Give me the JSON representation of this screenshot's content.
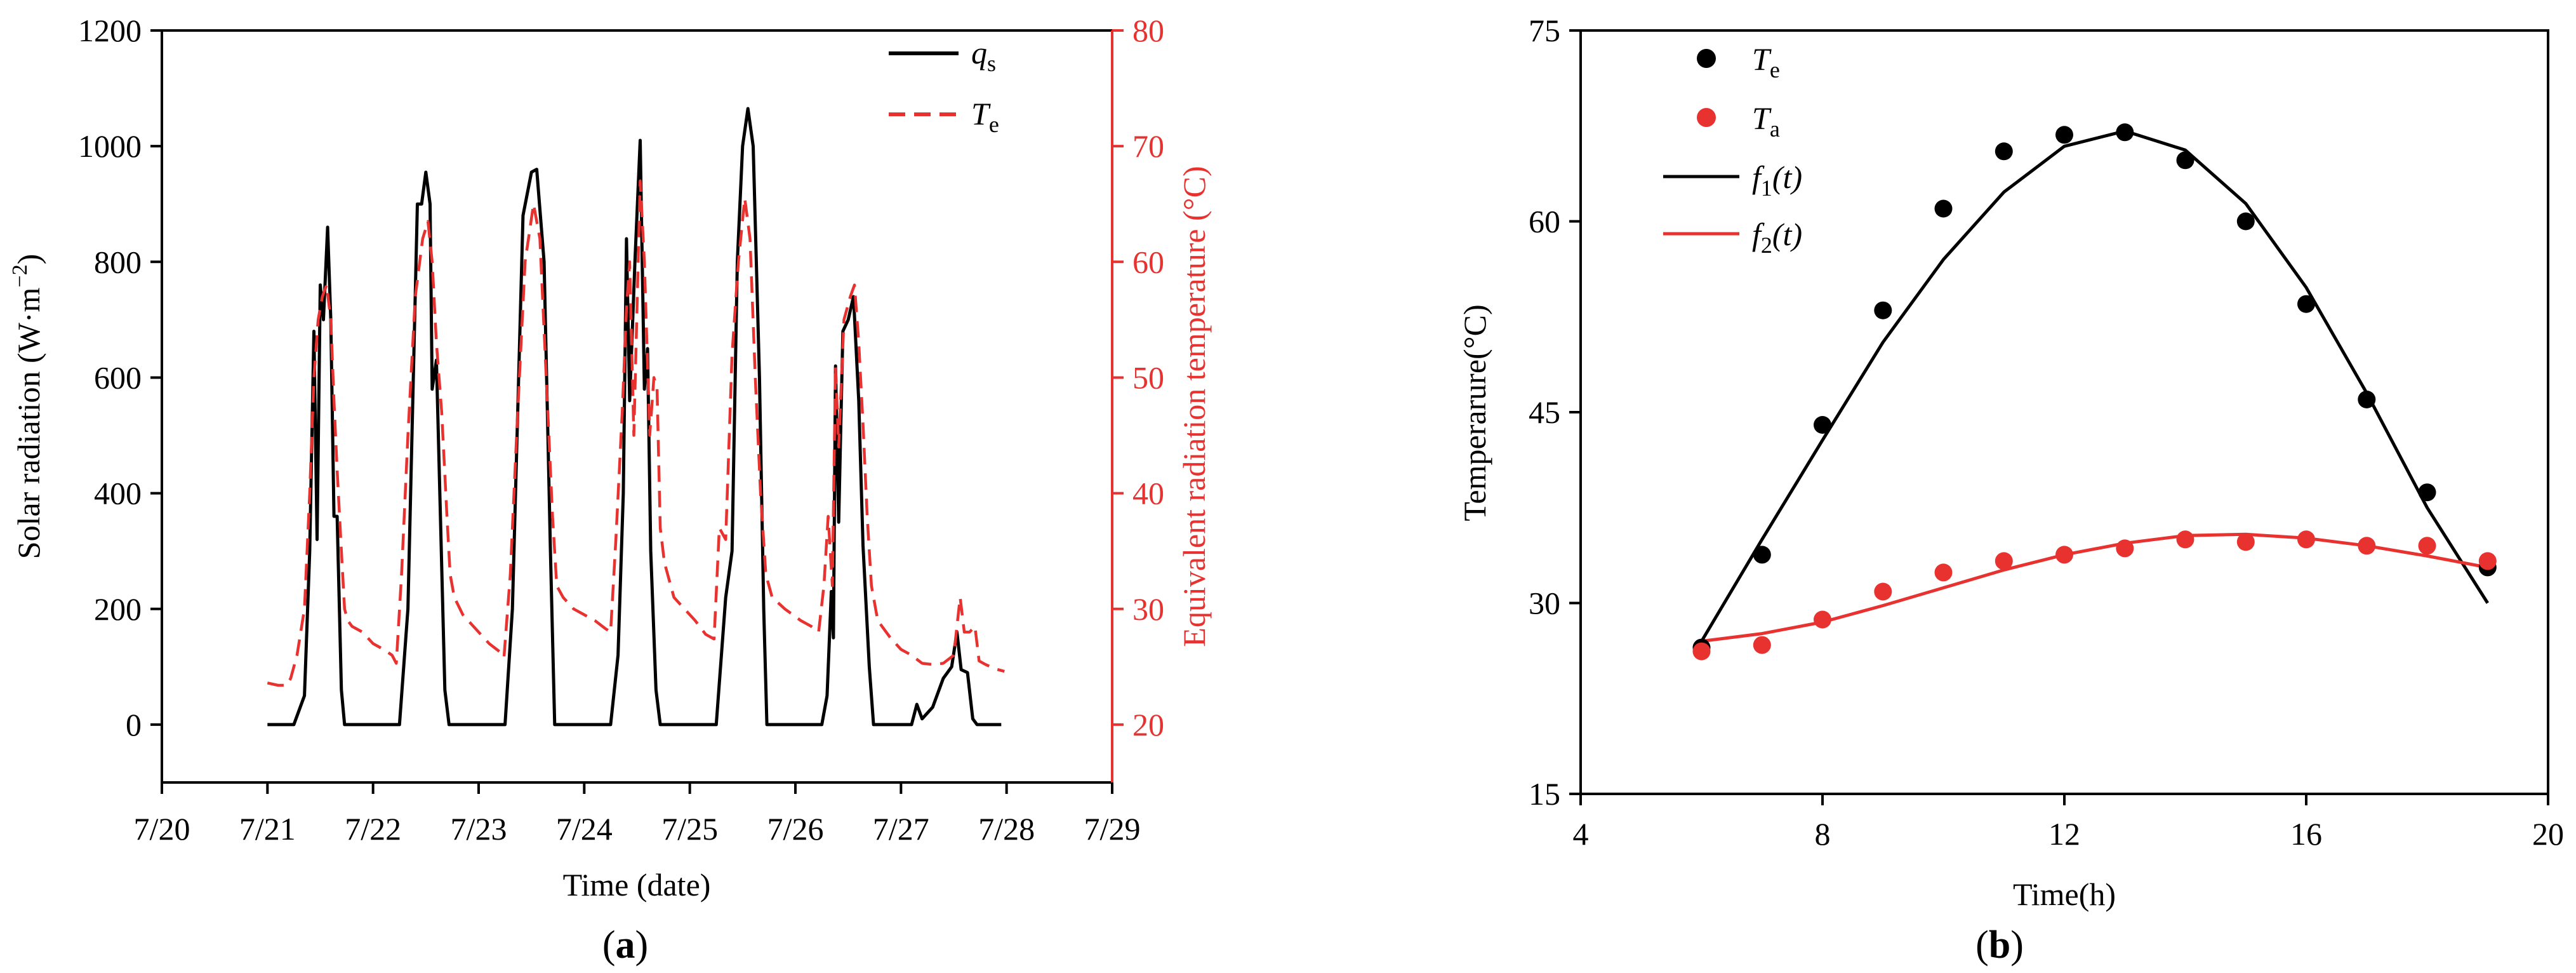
{
  "chart_data": [
    {
      "id": "a",
      "type": "line",
      "caption_open": "(",
      "caption_letter": "a",
      "caption_close": ")",
      "xlabel": "Time (date)",
      "ylabel_left": "Solar radiation (W·m",
      "ylabel_left_sup": "−2",
      "ylabel_left_end": ")",
      "ylabel_right": "Equivalent radiation  temperature (°C)",
      "x_tick_labels": [
        "7/20",
        "7/21",
        "7/22",
        "7/23",
        "7/24",
        "7/25",
        "7/26",
        "7/27",
        "7/28",
        "7/29"
      ],
      "xlim": [
        20,
        29
      ],
      "ylim_left": [
        -100,
        1200
      ],
      "yticks_left": [
        0,
        200,
        400,
        600,
        800,
        1000,
        1200
      ],
      "ylim_right": [
        15,
        80
      ],
      "yticks_right": [
        20,
        30,
        40,
        50,
        60,
        70,
        80
      ],
      "legend": [
        {
          "symbol": "q",
          "sub": "s",
          "color": "#000000",
          "style": "solid"
        },
        {
          "symbol": "T",
          "sub": "e",
          "color": "#e8322f",
          "style": "dashed"
        }
      ],
      "series": [
        {
          "name": "q_s",
          "axis": "left",
          "color": "#000000",
          "points": [
            [
              21.0,
              0
            ],
            [
              21.25,
              0
            ],
            [
              21.35,
              50
            ],
            [
              21.4,
              300
            ],
            [
              21.44,
              680
            ],
            [
              21.47,
              320
            ],
            [
              21.5,
              760
            ],
            [
              21.53,
              700
            ],
            [
              21.57,
              860
            ],
            [
              21.6,
              700
            ],
            [
              21.63,
              360
            ],
            [
              21.66,
              360
            ],
            [
              21.7,
              60
            ],
            [
              21.73,
              0
            ],
            [
              22.25,
              0
            ],
            [
              22.33,
              200
            ],
            [
              22.42,
              900
            ],
            [
              22.46,
              900
            ],
            [
              22.5,
              955
            ],
            [
              22.54,
              900
            ],
            [
              22.56,
              580
            ],
            [
              22.6,
              630
            ],
            [
              22.68,
              60
            ],
            [
              22.72,
              0
            ],
            [
              23.25,
              0
            ],
            [
              23.32,
              200
            ],
            [
              23.42,
              880
            ],
            [
              23.5,
              955
            ],
            [
              23.55,
              960
            ],
            [
              23.62,
              800
            ],
            [
              23.68,
              300
            ],
            [
              23.72,
              0
            ],
            [
              24.25,
              0
            ],
            [
              24.32,
              120
            ],
            [
              24.37,
              400
            ],
            [
              24.4,
              840
            ],
            [
              24.43,
              560
            ],
            [
              24.48,
              800
            ],
            [
              24.53,
              1010
            ],
            [
              24.57,
              580
            ],
            [
              24.6,
              650
            ],
            [
              24.63,
              300
            ],
            [
              24.68,
              60
            ],
            [
              24.72,
              0
            ],
            [
              25.25,
              0
            ],
            [
              25.34,
              220
            ],
            [
              25.4,
              300
            ],
            [
              25.45,
              800
            ],
            [
              25.5,
              1000
            ],
            [
              25.55,
              1065
            ],
            [
              25.6,
              1000
            ],
            [
              25.66,
              600
            ],
            [
              25.7,
              200
            ],
            [
              25.73,
              0
            ],
            [
              26.25,
              0
            ],
            [
              26.3,
              50
            ],
            [
              26.34,
              230
            ],
            [
              26.36,
              150
            ],
            [
              26.38,
              620
            ],
            [
              26.41,
              350
            ],
            [
              26.45,
              680
            ],
            [
              26.5,
              700
            ],
            [
              26.55,
              740
            ],
            [
              26.6,
              560
            ],
            [
              26.64,
              310
            ],
            [
              26.7,
              100
            ],
            [
              26.74,
              0
            ],
            [
              27.0,
              0
            ],
            [
              27.1,
              0
            ],
            [
              27.15,
              35
            ],
            [
              27.2,
              10
            ],
            [
              27.3,
              30
            ],
            [
              27.4,
              80
            ],
            [
              27.48,
              100
            ],
            [
              27.53,
              160
            ],
            [
              27.57,
              95
            ],
            [
              27.63,
              90
            ],
            [
              27.68,
              10
            ],
            [
              27.72,
              0
            ],
            [
              27.95,
              0
            ]
          ]
        },
        {
          "name": "T_e",
          "axis": "right",
          "color": "#e8322f",
          "points": [
            [
              21.0,
              23.6
            ],
            [
              21.1,
              23.4
            ],
            [
              21.18,
              23.4
            ],
            [
              21.22,
              24
            ],
            [
              21.28,
              26
            ],
            [
              21.35,
              30
            ],
            [
              21.4,
              40
            ],
            [
              21.44,
              50
            ],
            [
              21.48,
              55
            ],
            [
              21.52,
              57
            ],
            [
              21.56,
              58
            ],
            [
              21.6,
              55
            ],
            [
              21.63,
              48
            ],
            [
              21.66,
              42
            ],
            [
              21.7,
              35
            ],
            [
              21.73,
              30
            ],
            [
              21.76,
              29
            ],
            [
              21.8,
              28.5
            ],
            [
              21.9,
              28
            ],
            [
              22.0,
              27
            ],
            [
              22.1,
              26.5
            ],
            [
              22.18,
              26
            ],
            [
              22.22,
              25.3
            ],
            [
              22.27,
              33
            ],
            [
              22.33,
              45
            ],
            [
              22.4,
              57
            ],
            [
              22.47,
              62
            ],
            [
              22.52,
              63.5
            ],
            [
              22.56,
              60
            ],
            [
              22.6,
              53
            ],
            [
              22.65,
              47
            ],
            [
              22.7,
              38
            ],
            [
              22.73,
              33
            ],
            [
              22.77,
              31
            ],
            [
              22.85,
              29.5
            ],
            [
              22.95,
              28.5
            ],
            [
              23.1,
              27
            ],
            [
              23.2,
              26.3
            ],
            [
              23.24,
              25.8
            ],
            [
              23.3,
              33
            ],
            [
              23.37,
              47
            ],
            [
              23.44,
              60
            ],
            [
              23.52,
              65
            ],
            [
              23.58,
              62
            ],
            [
              23.64,
              50
            ],
            [
              23.7,
              38
            ],
            [
              23.74,
              32
            ],
            [
              23.8,
              31
            ],
            [
              23.9,
              30
            ],
            [
              24.0,
              29.5
            ],
            [
              24.1,
              29
            ],
            [
              24.2,
              28.3
            ],
            [
              24.25,
              28
            ],
            [
              24.3,
              36
            ],
            [
              24.36,
              47
            ],
            [
              24.4,
              56
            ],
            [
              24.43,
              60
            ],
            [
              24.47,
              45
            ],
            [
              24.53,
              67
            ],
            [
              24.57,
              60
            ],
            [
              24.62,
              45
            ],
            [
              24.66,
              50
            ],
            [
              24.69,
              49
            ],
            [
              24.72,
              37
            ],
            [
              24.76,
              34
            ],
            [
              24.85,
              31
            ],
            [
              24.95,
              30
            ],
            [
              25.05,
              29
            ],
            [
              25.15,
              27.8
            ],
            [
              25.23,
              27.4
            ],
            [
              25.28,
              37
            ],
            [
              25.34,
              36
            ],
            [
              25.4,
              52
            ],
            [
              25.46,
              60
            ],
            [
              25.52,
              65.5
            ],
            [
              25.57,
              62
            ],
            [
              25.62,
              50
            ],
            [
              25.67,
              40
            ],
            [
              25.72,
              33
            ],
            [
              25.78,
              31
            ],
            [
              25.9,
              30
            ],
            [
              26.05,
              29
            ],
            [
              26.15,
              28.5
            ],
            [
              26.22,
              28
            ],
            [
              26.27,
              32
            ],
            [
              26.31,
              38
            ],
            [
              26.35,
              32
            ],
            [
              26.38,
              51
            ],
            [
              26.41,
              44
            ],
            [
              26.46,
              55
            ],
            [
              26.52,
              57
            ],
            [
              26.56,
              58
            ],
            [
              26.6,
              53
            ],
            [
              26.64,
              46
            ],
            [
              26.68,
              38
            ],
            [
              26.72,
              32
            ],
            [
              26.78,
              29
            ],
            [
              26.9,
              27.5
            ],
            [
              27.0,
              26.5
            ],
            [
              27.1,
              26
            ],
            [
              27.2,
              25.3
            ],
            [
              27.3,
              25.2
            ],
            [
              27.4,
              25.3
            ],
            [
              27.5,
              26
            ],
            [
              27.56,
              31
            ],
            [
              27.6,
              28
            ],
            [
              27.65,
              28
            ],
            [
              27.7,
              28.5
            ],
            [
              27.74,
              25.5
            ],
            [
              27.8,
              25.2
            ],
            [
              27.9,
              24.8
            ],
            [
              27.98,
              24.6
            ]
          ]
        }
      ]
    },
    {
      "id": "b",
      "type": "scatter",
      "caption_open": "(",
      "caption_letter": "b",
      "caption_close": ")",
      "xlabel": "Time(h)",
      "ylabel": "Temperarure(°C)",
      "xlim": [
        4,
        20
      ],
      "xticks": [
        4,
        8,
        12,
        16,
        20
      ],
      "ylim": [
        15,
        75
      ],
      "yticks": [
        15,
        30,
        45,
        60,
        75
      ],
      "legend": [
        {
          "kind": "marker",
          "symbol": "T",
          "sub": "e",
          "color": "#000000"
        },
        {
          "kind": "marker",
          "symbol": "T",
          "sub": "a",
          "color": "#e8322f"
        },
        {
          "kind": "line",
          "symbol": "f",
          "sub": "1",
          "arg": "(t)",
          "color": "#000000"
        },
        {
          "kind": "line",
          "symbol": "f",
          "sub": "2",
          "arg": "(t)",
          "color": "#e8322f"
        }
      ],
      "series": [
        {
          "name": "T_e",
          "kind": "scatter",
          "color": "#000000",
          "x": [
            6,
            7,
            8,
            9,
            10,
            11,
            12,
            13,
            14,
            15,
            16,
            17,
            18,
            19
          ],
          "y": [
            26.5,
            33.8,
            44.0,
            53.0,
            61.0,
            65.5,
            66.8,
            67.0,
            64.8,
            60.0,
            53.5,
            46.0,
            38.7,
            32.8
          ]
        },
        {
          "name": "T_a",
          "kind": "scatter",
          "color": "#e8322f",
          "x": [
            6,
            7,
            8,
            9,
            10,
            11,
            12,
            13,
            14,
            15,
            16,
            17,
            18,
            19
          ],
          "y": [
            26.2,
            26.7,
            28.7,
            30.9,
            32.4,
            33.3,
            33.8,
            34.3,
            35.0,
            34.8,
            35.0,
            34.5,
            34.5,
            33.3
          ]
        },
        {
          "name": "f1(t)",
          "kind": "line",
          "color": "#000000",
          "x": [
            6,
            7,
            8,
            9,
            10,
            11,
            12,
            13,
            14,
            15,
            16,
            17,
            18,
            19
          ],
          "y": [
            27.0,
            35.0,
            42.8,
            50.5,
            57.0,
            62.3,
            65.9,
            67.1,
            65.6,
            61.4,
            54.8,
            46.5,
            37.5,
            30.0
          ]
        },
        {
          "name": "f2(t)",
          "kind": "line",
          "color": "#e8322f",
          "x": [
            6,
            7,
            8,
            9,
            10,
            11,
            12,
            13,
            14,
            15,
            16,
            17,
            18,
            19
          ],
          "y": [
            27.0,
            27.6,
            28.5,
            29.8,
            31.2,
            32.6,
            33.8,
            34.7,
            35.3,
            35.4,
            35.1,
            34.5,
            33.7,
            32.8
          ]
        }
      ]
    }
  ]
}
